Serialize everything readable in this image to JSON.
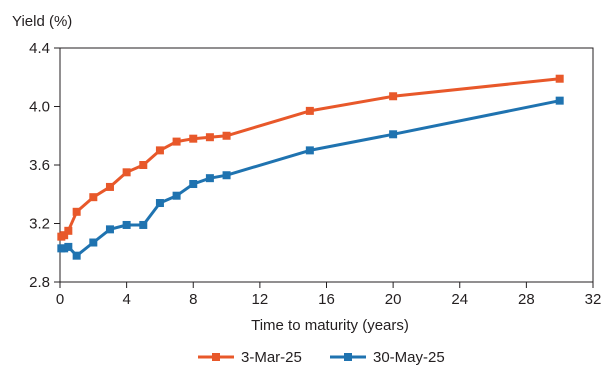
{
  "chart_data": {
    "type": "line",
    "title": "",
    "xlabel": "Time to maturity (years)",
    "ylabel": "Yield (%)",
    "xlim": [
      0,
      32
    ],
    "ylim": [
      2.8,
      4.4
    ],
    "x_ticks": [
      0,
      4,
      8,
      12,
      16,
      20,
      24,
      28,
      32
    ],
    "y_ticks": [
      2.8,
      3.2,
      3.6,
      4.0,
      4.4
    ],
    "x_tick_labels": [
      "0",
      "4",
      "8",
      "12",
      "16",
      "20",
      "24",
      "28",
      "32"
    ],
    "y_tick_labels": [
      "2.8",
      "3.2",
      "3.6",
      "4.0",
      "4.4"
    ],
    "grid": false,
    "legend_position": "bottom-center",
    "series": [
      {
        "name": "3-Mar-25",
        "color": "#e8582a",
        "marker": "square",
        "x": [
          0.08,
          0.25,
          0.5,
          1,
          2,
          3,
          4,
          5,
          6,
          7,
          8,
          9,
          10,
          15,
          20,
          30
        ],
        "y": [
          3.11,
          3.12,
          3.15,
          3.28,
          3.38,
          3.45,
          3.55,
          3.6,
          3.7,
          3.76,
          3.78,
          3.79,
          3.8,
          3.97,
          4.07,
          4.19
        ]
      },
      {
        "name": "30-May-25",
        "color": "#1f73b0",
        "marker": "square",
        "x": [
          0.08,
          0.25,
          0.5,
          1,
          2,
          3,
          4,
          5,
          6,
          7,
          8,
          9,
          10,
          15,
          20,
          30
        ],
        "y": [
          3.03,
          3.03,
          3.04,
          2.98,
          3.07,
          3.16,
          3.19,
          3.19,
          3.34,
          3.39,
          3.47,
          3.51,
          3.53,
          3.7,
          3.81,
          4.04
        ]
      }
    ]
  }
}
